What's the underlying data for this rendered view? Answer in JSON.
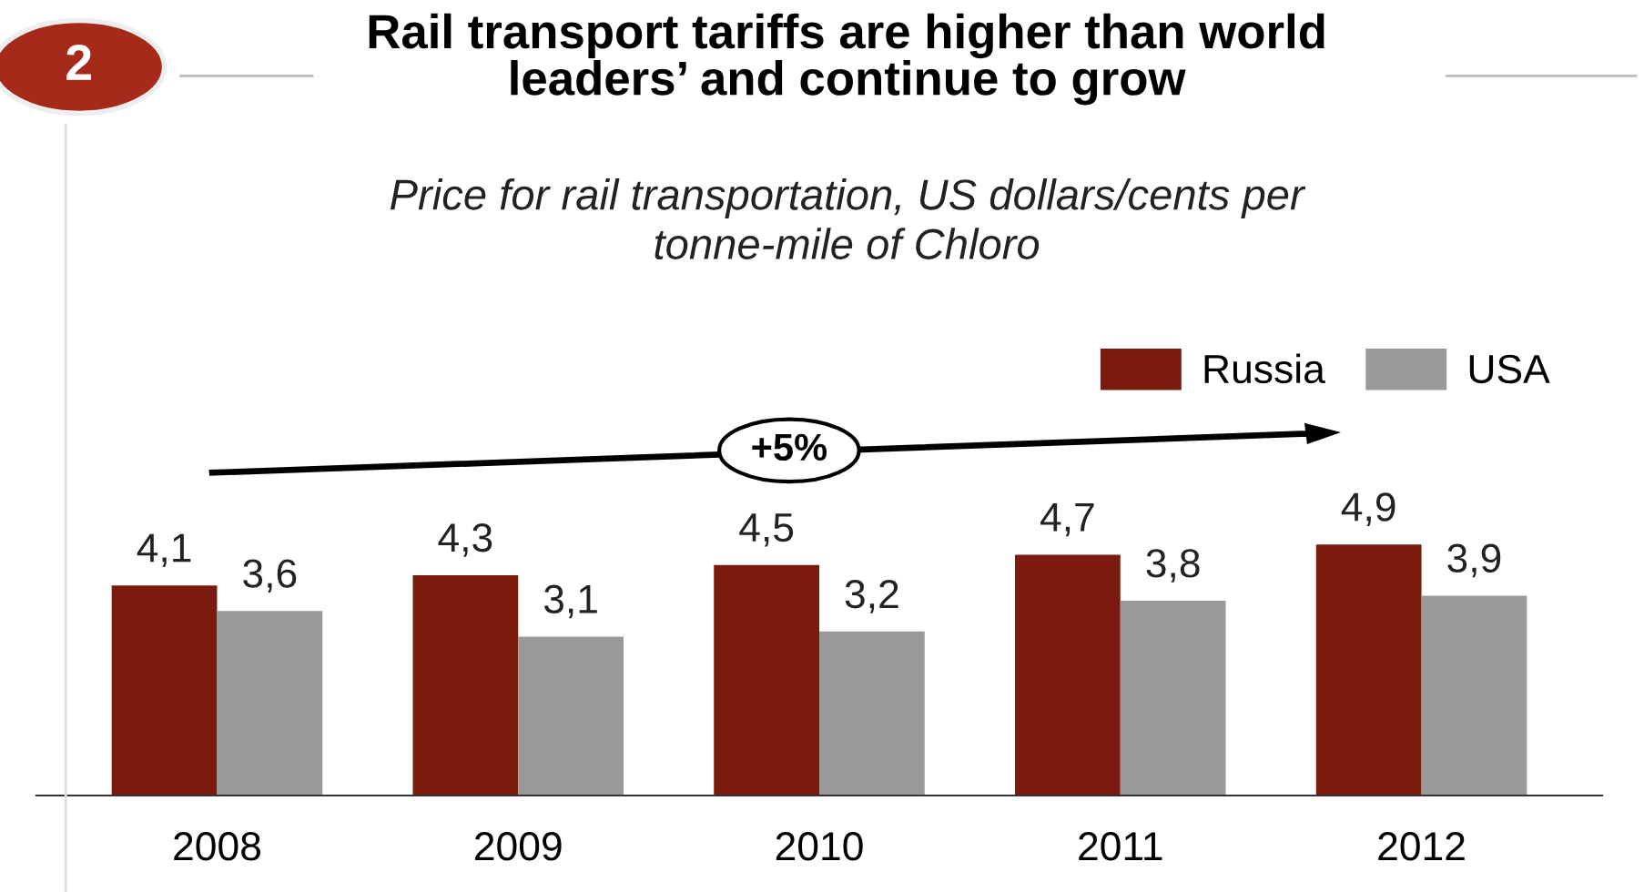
{
  "chart_data": {
    "type": "bar",
    "title": "Rail transport tariffs are higher than world\nleaders’ and continue to grow",
    "subtitle": "Price for rail transportation, US dollars/cents per\ntonne-mile of Chloro",
    "categories": [
      "2008",
      "2009",
      "2010",
      "2011",
      "2012"
    ],
    "series": [
      {
        "name": "Russia",
        "color": "#7b1a0e",
        "values": [
          4.1,
          4.3,
          4.5,
          4.7,
          4.9
        ],
        "value_labels": [
          "4,1",
          "4,3",
          "4,5",
          "4,7",
          "4,9"
        ]
      },
      {
        "name": "USA",
        "color": "#999999",
        "values": [
          3.6,
          3.1,
          3.2,
          3.8,
          3.9
        ],
        "value_labels": [
          "3,6",
          "3,1",
          "3,2",
          "3,8",
          "3,9"
        ]
      }
    ],
    "legend": "top right",
    "grid": false,
    "annotations": [
      "2",
      "+5%"
    ]
  }
}
